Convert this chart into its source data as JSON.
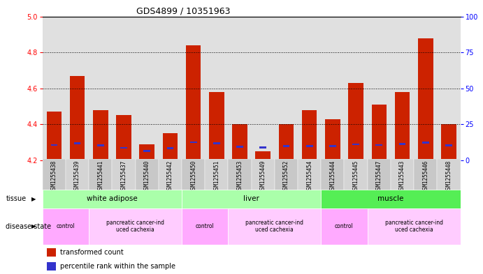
{
  "title": "GDS4899 / 10351963",
  "samples": [
    "GSM1255438",
    "GSM1255439",
    "GSM1255441",
    "GSM1255437",
    "GSM1255440",
    "GSM1255442",
    "GSM1255450",
    "GSM1255451",
    "GSM1255453",
    "GSM1255449",
    "GSM1255452",
    "GSM1255454",
    "GSM1255444",
    "GSM1255445",
    "GSM1255447",
    "GSM1255443",
    "GSM1255446",
    "GSM1255448"
  ],
  "red_values": [
    4.47,
    4.67,
    4.48,
    4.45,
    4.29,
    4.35,
    4.84,
    4.58,
    4.4,
    4.25,
    4.4,
    4.48,
    4.43,
    4.63,
    4.51,
    4.58,
    4.88,
    4.4
  ],
  "blue_values": [
    4.285,
    4.295,
    4.282,
    4.27,
    4.252,
    4.268,
    4.3,
    4.295,
    4.275,
    4.272,
    4.28,
    4.28,
    4.28,
    4.288,
    4.285,
    4.29,
    4.298,
    4.282
  ],
  "baseline": 4.2,
  "ylim_left": [
    4.2,
    5.0
  ],
  "ylim_right": [
    0,
    100
  ],
  "yticks_left": [
    4.2,
    4.4,
    4.6,
    4.8,
    5.0
  ],
  "yticks_right": [
    0,
    25,
    50,
    75,
    100
  ],
  "dotted_lines": [
    4.4,
    4.6,
    4.8
  ],
  "bar_color": "#CC2200",
  "blue_color": "#3333CC",
  "plot_bg_color": "#E0E0E0",
  "xlabel_bg_color": "#C8C8C8",
  "tissue_groups": [
    {
      "label": "white adipose",
      "start": 0,
      "end": 5,
      "color": "#AAFFAA"
    },
    {
      "label": "liver",
      "start": 6,
      "end": 11,
      "color": "#AAFFAA"
    },
    {
      "label": "muscle",
      "start": 12,
      "end": 17,
      "color": "#55EE55"
    }
  ],
  "disease_groups": [
    {
      "label": "control",
      "start": 0,
      "end": 1,
      "color": "#FFAAFF"
    },
    {
      "label": "pancreatic cancer-ind\nuced cachexia",
      "start": 2,
      "end": 5,
      "color": "#FFCCFF"
    },
    {
      "label": "control",
      "start": 6,
      "end": 7,
      "color": "#FFAAFF"
    },
    {
      "label": "pancreatic cancer-ind\nuced cachexia",
      "start": 8,
      "end": 11,
      "color": "#FFCCFF"
    },
    {
      "label": "control",
      "start": 12,
      "end": 13,
      "color": "#FFAAFF"
    },
    {
      "label": "pancreatic cancer-ind\nuced cachexia",
      "start": 14,
      "end": 17,
      "color": "#FFCCFF"
    }
  ],
  "fig_bg_color": "#FFFFFF"
}
